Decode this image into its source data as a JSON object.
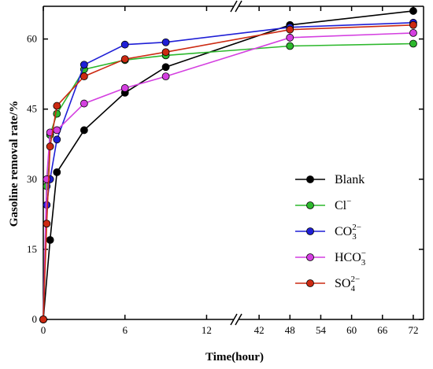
{
  "chart_data": {
    "type": "line",
    "xlabel": "Time(hour)",
    "ylabel": "Gasoline removal rate/%",
    "ylim": [
      0,
      67
    ],
    "x_segments": [
      {
        "range": [
          0,
          14
        ],
        "ticks": [
          0,
          6,
          12
        ],
        "tick_labels": [
          "0",
          "6",
          "12"
        ]
      },
      {
        "range": [
          38,
          74
        ],
        "ticks": [
          42,
          48,
          54,
          60,
          66,
          72
        ],
        "tick_labels": [
          "42",
          "48",
          "54",
          "60",
          "66",
          "72"
        ]
      }
    ],
    "y_ticks": [
      0,
      15,
      30,
      45,
      60
    ],
    "y_tick_labels": [
      "0",
      "15",
      "30",
      "45",
      "60"
    ],
    "axis_break": true,
    "grid": false,
    "legend_position": "center-right",
    "series": [
      {
        "name": "Blank",
        "name_main": "Blank",
        "name_sup": "",
        "name_sub": "",
        "color": "#000000",
        "x": [
          0,
          0.5,
          1,
          3,
          6,
          9,
          48,
          72
        ],
        "y": [
          0,
          17,
          31.5,
          40.5,
          48.5,
          54,
          63,
          66
        ]
      },
      {
        "name": "Cl−",
        "name_main": "Cl",
        "name_sup": "−",
        "name_sub": "",
        "color": "#2db82d",
        "x": [
          0,
          0.25,
          0.5,
          1,
          3,
          6,
          9,
          48,
          72
        ],
        "y": [
          0,
          28.5,
          39.5,
          44,
          53.5,
          55.5,
          56.5,
          58.5,
          59
        ]
      },
      {
        "name": "CO32−",
        "name_main": "CO",
        "name_sup": "2−",
        "name_sub": "3",
        "color": "#1f1fd6",
        "x": [
          0,
          0.25,
          0.5,
          1,
          3,
          6,
          9,
          48,
          72
        ],
        "y": [
          0,
          24.5,
          30,
          38.5,
          54.5,
          58.8,
          59.3,
          62.5,
          63.5
        ]
      },
      {
        "name": "HCO3−",
        "name_main": "HCO",
        "name_sup": "−",
        "name_sub": "3",
        "color": "#d43fe0",
        "x": [
          0,
          0.25,
          0.5,
          1,
          3,
          6,
          9,
          48,
          72
        ],
        "y": [
          0,
          30,
          40,
          40.5,
          46.2,
          49.5,
          52,
          60.3,
          61.3
        ]
      },
      {
        "name": "SO42−",
        "name_main": "SO",
        "name_sup": "2−",
        "name_sub": "4",
        "color": "#cc2a12",
        "x": [
          0,
          0.25,
          0.5,
          1,
          3,
          6,
          9,
          48,
          72
        ],
        "y": [
          0,
          20.5,
          37,
          45.7,
          52,
          55.7,
          57.2,
          62,
          63
        ]
      }
    ]
  }
}
